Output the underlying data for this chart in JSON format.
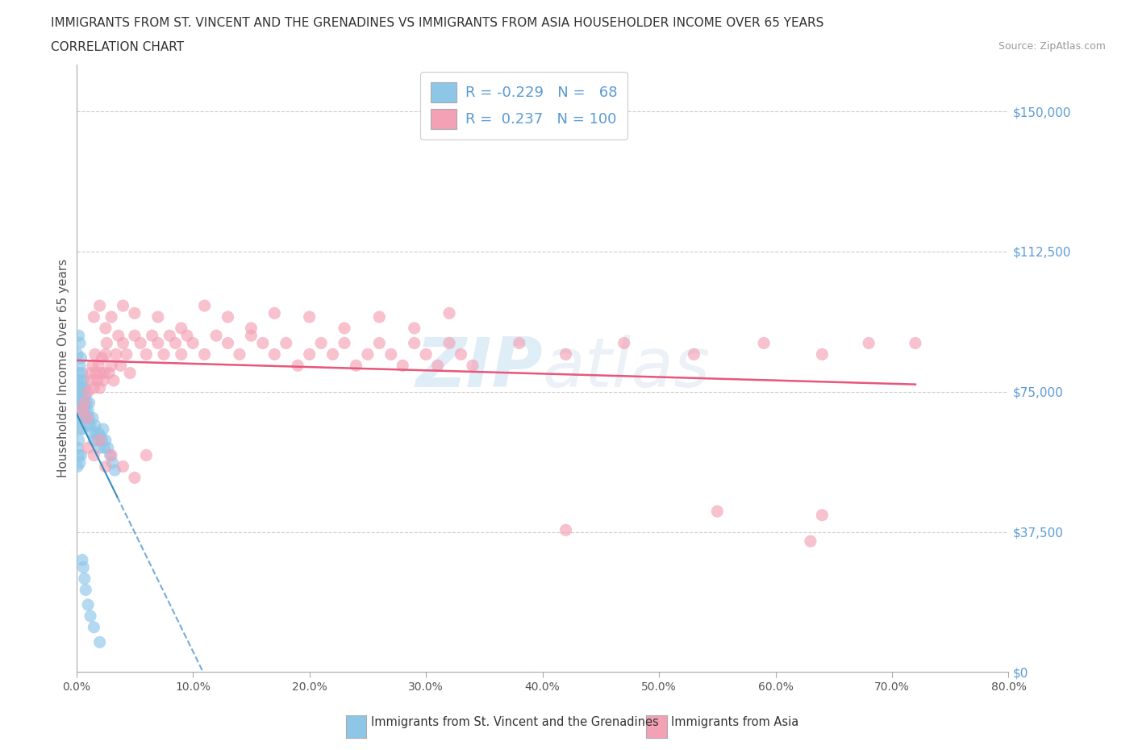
{
  "title_line1": "IMMIGRANTS FROM ST. VINCENT AND THE GRENADINES VS IMMIGRANTS FROM ASIA HOUSEHOLDER INCOME OVER 65 YEARS",
  "title_line2": "CORRELATION CHART",
  "source_text": "Source: ZipAtlas.com",
  "ylabel": "Householder Income Over 65 years",
  "legend_label1": "Immigrants from St. Vincent and the Grenadines",
  "legend_label2": "Immigrants from Asia",
  "R1": -0.229,
  "N1": 68,
  "R2": 0.237,
  "N2": 100,
  "color1": "#8ec6e8",
  "color2": "#f4a0b5",
  "trendline_color1": "#3a8bbf",
  "trendline_color2": "#e8567a",
  "xlim": [
    0.0,
    0.8
  ],
  "ylim": [
    0,
    162500
  ],
  "yticks": [
    0,
    37500,
    75000,
    112500,
    150000
  ],
  "ytick_labels": [
    "$0",
    "$37,500",
    "$75,000",
    "$112,500",
    "$150,000"
  ],
  "xticks": [
    0.0,
    0.1,
    0.2,
    0.3,
    0.4,
    0.5,
    0.6,
    0.7,
    0.8
  ],
  "xtick_labels": [
    "0.0%",
    "10.0%",
    "20.0%",
    "30.0%",
    "40.0%",
    "50.0%",
    "60.0%",
    "70.0%",
    "80.0%"
  ],
  "blue_x": [
    0.001,
    0.001,
    0.001,
    0.002,
    0.002,
    0.002,
    0.002,
    0.002,
    0.003,
    0.003,
    0.003,
    0.003,
    0.003,
    0.004,
    0.004,
    0.004,
    0.004,
    0.005,
    0.005,
    0.005,
    0.005,
    0.006,
    0.006,
    0.006,
    0.007,
    0.007,
    0.007,
    0.008,
    0.008,
    0.009,
    0.009,
    0.01,
    0.01,
    0.011,
    0.011,
    0.012,
    0.013,
    0.014,
    0.015,
    0.016,
    0.017,
    0.018,
    0.019,
    0.02,
    0.021,
    0.022,
    0.023,
    0.024,
    0.025,
    0.027,
    0.029,
    0.031,
    0.033,
    0.001,
    0.001,
    0.002,
    0.002,
    0.003,
    0.003,
    0.004,
    0.005,
    0.006,
    0.007,
    0.008,
    0.01,
    0.012,
    0.015,
    0.02
  ],
  "blue_y": [
    78000,
    72000,
    85000,
    80000,
    75000,
    70000,
    90000,
    68000,
    82000,
    76000,
    72000,
    68000,
    88000,
    78000,
    73000,
    68000,
    84000,
    76000,
    72000,
    80000,
    65000,
    74000,
    70000,
    78000,
    72000,
    68000,
    76000,
    70000,
    74000,
    68000,
    72000,
    70000,
    66000,
    68000,
    72000,
    66000,
    64000,
    68000,
    62000,
    66000,
    64000,
    62000,
    64000,
    60000,
    63000,
    62000,
    65000,
    60000,
    62000,
    60000,
    58000,
    56000,
    54000,
    55000,
    60000,
    58000,
    62000,
    56000,
    65000,
    58000,
    30000,
    28000,
    25000,
    22000,
    18000,
    15000,
    12000,
    8000
  ],
  "pink_x": [
    0.005,
    0.007,
    0.009,
    0.01,
    0.012,
    0.013,
    0.014,
    0.015,
    0.016,
    0.017,
    0.018,
    0.019,
    0.02,
    0.021,
    0.022,
    0.023,
    0.024,
    0.025,
    0.026,
    0.028,
    0.03,
    0.032,
    0.034,
    0.036,
    0.038,
    0.04,
    0.043,
    0.046,
    0.05,
    0.055,
    0.06,
    0.065,
    0.07,
    0.075,
    0.08,
    0.085,
    0.09,
    0.095,
    0.1,
    0.11,
    0.12,
    0.13,
    0.14,
    0.15,
    0.16,
    0.17,
    0.18,
    0.19,
    0.2,
    0.21,
    0.22,
    0.23,
    0.24,
    0.25,
    0.26,
    0.27,
    0.28,
    0.29,
    0.3,
    0.31,
    0.32,
    0.33,
    0.34,
    0.015,
    0.02,
    0.025,
    0.03,
    0.04,
    0.05,
    0.07,
    0.09,
    0.11,
    0.13,
    0.15,
    0.17,
    0.2,
    0.23,
    0.26,
    0.29,
    0.32,
    0.38,
    0.42,
    0.47,
    0.53,
    0.59,
    0.64,
    0.68,
    0.72,
    0.42,
    0.64,
    0.01,
    0.015,
    0.02,
    0.025,
    0.03,
    0.04,
    0.05,
    0.06,
    0.55,
    0.63
  ],
  "pink_y": [
    70000,
    72000,
    68000,
    75000,
    80000,
    78000,
    82000,
    76000,
    85000,
    80000,
    78000,
    82000,
    76000,
    80000,
    84000,
    78000,
    80000,
    85000,
    88000,
    80000,
    82000,
    78000,
    85000,
    90000,
    82000,
    88000,
    85000,
    80000,
    90000,
    88000,
    85000,
    90000,
    88000,
    85000,
    90000,
    88000,
    85000,
    90000,
    88000,
    85000,
    90000,
    88000,
    85000,
    90000,
    88000,
    85000,
    88000,
    82000,
    85000,
    88000,
    85000,
    88000,
    82000,
    85000,
    88000,
    85000,
    82000,
    88000,
    85000,
    82000,
    88000,
    85000,
    82000,
    95000,
    98000,
    92000,
    95000,
    98000,
    96000,
    95000,
    92000,
    98000,
    95000,
    92000,
    96000,
    95000,
    92000,
    95000,
    92000,
    96000,
    88000,
    85000,
    88000,
    85000,
    88000,
    85000,
    88000,
    88000,
    38000,
    42000,
    60000,
    58000,
    62000,
    55000,
    58000,
    55000,
    52000,
    58000,
    43000,
    35000
  ]
}
